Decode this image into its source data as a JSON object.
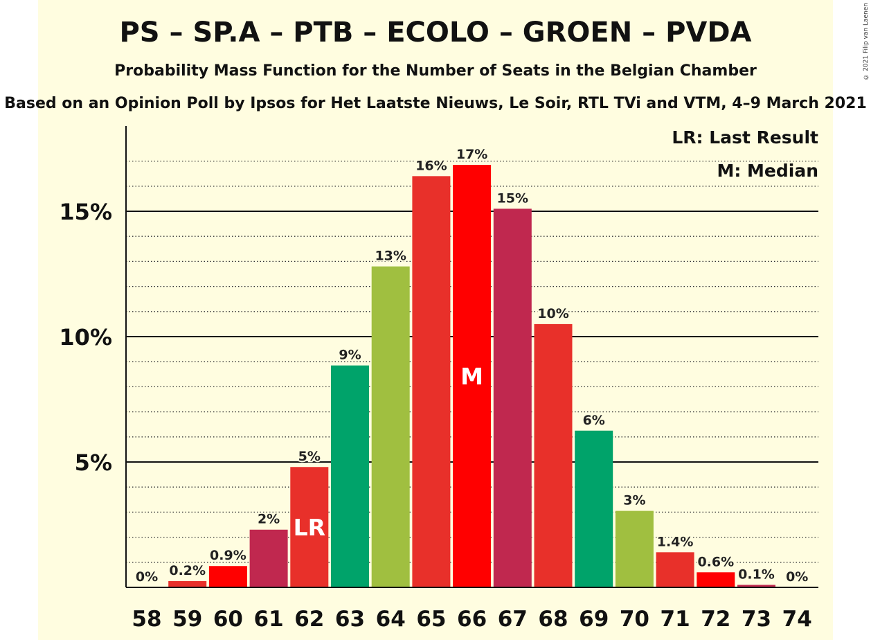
{
  "title": "PS – SP.A – PTB – ECOLO – GROEN – PVDA",
  "subtitle": "Probability Mass Function for the Number of Seats in the Belgian Chamber",
  "source": "Based on an Opinion Poll by Ipsos for Het Laatste Nieuws, Le Soir, RTL TVi and VTM, 4–9 March 2021",
  "copyright": "© 2021 Filip van Laenen",
  "legend": {
    "last_result": "LR: Last Result",
    "median": "M: Median"
  },
  "chart_data": {
    "type": "bar",
    "categories": [
      "58",
      "59",
      "60",
      "61",
      "62",
      "63",
      "64",
      "65",
      "66",
      "67",
      "68",
      "69",
      "70",
      "71",
      "72",
      "73",
      "74"
    ],
    "values": [
      0,
      0.25,
      0.85,
      2.3,
      4.8,
      8.85,
      12.8,
      16.4,
      16.85,
      15.1,
      10.5,
      6.25,
      3.05,
      1.4,
      0.6,
      0.1,
      0
    ],
    "value_labels": [
      "0%",
      "0.2%",
      "0.9%",
      "2%",
      "5%",
      "9%",
      "13%",
      "16%",
      "17%",
      "15%",
      "10%",
      "6%",
      "3%",
      "1.4%",
      "0.6%",
      "0.1%",
      "0%"
    ],
    "bar_colors": [
      "#e8302a",
      "#e8302a",
      "#ff0000",
      "#c0284f",
      "#e8302a",
      "#00a36a",
      "#a0bf40",
      "#e8302a",
      "#ff0000",
      "#c0284f",
      "#e8302a",
      "#00a36a",
      "#a0bf40",
      "#e8302a",
      "#ff0000",
      "#c0284f",
      "#e8302a"
    ],
    "bar_markers": {
      "62": "LR",
      "66": "M"
    },
    "y_ticks": [
      5,
      10,
      15
    ],
    "y_tick_labels": [
      "5%",
      "10%",
      "15%"
    ],
    "ylim": [
      0,
      18
    ],
    "minor_grid_step": 1
  }
}
